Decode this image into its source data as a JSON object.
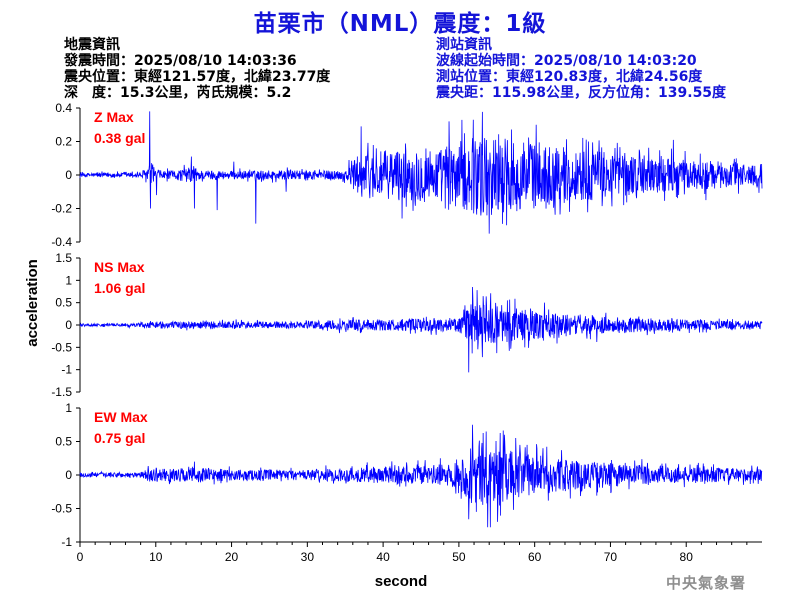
{
  "header": {
    "title": "苗栗市（NML）震度：1級"
  },
  "quake_info": {
    "heading": "地震資訊",
    "origin_time": "發震時間：2025/08/10 14:03:36",
    "epicenter": "震央位置：東經121.57度，北緯23.77度",
    "depth_magnitude": "深　度：15.3公里，芮氏規模：5.2"
  },
  "station_info": {
    "heading": "測站資訊",
    "start_time": "波線起始時間：2025/08/10 14:03:20",
    "location": "測站位置：東經120.83度，北緯24.56度",
    "distance": "震央距：115.98公里，反方位角：139.55度"
  },
  "footer": {
    "credit": "中央氣象署"
  },
  "chart_data": {
    "type": "line",
    "xlabel": "second",
    "ylabel": "acceleration",
    "xlim": [
      0,
      90
    ],
    "x_ticks": [
      0,
      10,
      20,
      30,
      40,
      50,
      60,
      70,
      80
    ],
    "line_color": "#0000ff",
    "label_color": "#ff0000",
    "grid": false,
    "panels": [
      {
        "name": "Z",
        "label": "Z Max",
        "max_value": "0.38 gal",
        "ylim": [
          -0.4,
          0.4
        ],
        "ticks": [
          -0.4,
          -0.2,
          0,
          0.2,
          0.4
        ],
        "tick_labels": [
          "-0.4",
          "-0.2",
          "0",
          "0.2",
          "0.4"
        ],
        "envelope": [
          [
            0,
            0.012
          ],
          [
            8,
            0.015
          ],
          [
            9,
            0.06
          ],
          [
            10,
            0.03
          ],
          [
            12,
            0.025
          ],
          [
            15,
            0.05
          ],
          [
            16,
            0.03
          ],
          [
            20,
            0.025
          ],
          [
            27,
            0.03
          ],
          [
            30,
            0.025
          ],
          [
            35,
            0.03
          ],
          [
            36,
            0.1
          ],
          [
            38,
            0.14
          ],
          [
            45,
            0.16
          ],
          [
            48,
            0.16
          ],
          [
            50,
            0.2
          ],
          [
            53,
            0.25
          ],
          [
            57,
            0.22
          ],
          [
            60,
            0.2
          ],
          [
            65,
            0.16
          ],
          [
            70,
            0.14
          ],
          [
            80,
            0.09
          ],
          [
            90,
            0.07
          ]
        ],
        "spikes": [
          [
            9.2,
            0.38
          ],
          [
            9.3,
            -0.2
          ],
          [
            10.1,
            -0.12
          ],
          [
            14.7,
            0.11
          ],
          [
            15.1,
            -0.2
          ],
          [
            18.1,
            -0.21
          ],
          [
            20.3,
            0.08
          ],
          [
            23.2,
            -0.29
          ],
          [
            27.2,
            -0.1
          ],
          [
            37.1,
            0.29
          ],
          [
            42.5,
            -0.26
          ],
          [
            48.7,
            0.32
          ],
          [
            51.9,
            0.33
          ],
          [
            54.0,
            -0.35
          ],
          [
            56.3,
            -0.3
          ],
          [
            60.2,
            0.3
          ],
          [
            64.6,
            -0.22
          ],
          [
            67.1,
            0.2
          ],
          [
            78.3,
            0.21
          ],
          [
            82.6,
            -0.15
          ]
        ]
      },
      {
        "name": "NS",
        "label": "NS Max",
        "max_value": "1.06 gal",
        "ylim": [
          -1.5,
          1.5
        ],
        "ticks": [
          -1.5,
          -1,
          -0.5,
          0,
          0.5,
          1,
          1.5
        ],
        "tick_labels": [
          "-1.5",
          "-1",
          "-0.5",
          "0",
          "0.5",
          "1",
          "1.5"
        ],
        "envelope": [
          [
            0,
            0.03
          ],
          [
            8,
            0.04
          ],
          [
            10,
            0.08
          ],
          [
            20,
            0.08
          ],
          [
            30,
            0.08
          ],
          [
            35,
            0.12
          ],
          [
            45,
            0.14
          ],
          [
            50,
            0.15
          ],
          [
            51.5,
            0.45
          ],
          [
            53,
            0.5
          ],
          [
            56,
            0.4
          ],
          [
            60,
            0.32
          ],
          [
            65,
            0.22
          ],
          [
            70,
            0.18
          ],
          [
            80,
            0.12
          ],
          [
            90,
            0.08
          ]
        ],
        "spikes": [
          [
            51.3,
            -1.06
          ],
          [
            51.8,
            0.85
          ],
          [
            52.4,
            0.78
          ],
          [
            53.1,
            -0.72
          ],
          [
            54.2,
            0.71
          ],
          [
            55.0,
            -0.63
          ],
          [
            56.4,
            0.55
          ],
          [
            58.7,
            -0.5
          ],
          [
            61.3,
            0.5
          ],
          [
            68.2,
            -0.38
          ],
          [
            36.0,
            0.15
          ]
        ]
      },
      {
        "name": "EW",
        "label": "EW Max",
        "max_value": "0.75 gal",
        "ylim": [
          -1,
          1
        ],
        "ticks": [
          -1,
          -0.5,
          0,
          0.5,
          1
        ],
        "tick_labels": [
          "-1",
          "-0.5",
          "0",
          "0.5",
          "1"
        ],
        "envelope": [
          [
            0,
            0.03
          ],
          [
            8,
            0.04
          ],
          [
            9,
            0.1
          ],
          [
            12,
            0.09
          ],
          [
            15,
            0.12
          ],
          [
            20,
            0.08
          ],
          [
            30,
            0.08
          ],
          [
            35,
            0.1
          ],
          [
            40,
            0.13
          ],
          [
            45,
            0.14
          ],
          [
            50,
            0.18
          ],
          [
            51.5,
            0.45
          ],
          [
            54,
            0.5
          ],
          [
            57,
            0.38
          ],
          [
            60,
            0.3
          ],
          [
            65,
            0.22
          ],
          [
            70,
            0.18
          ],
          [
            80,
            0.12
          ],
          [
            90,
            0.09
          ]
        ],
        "spikes": [
          [
            51.8,
            0.75
          ],
          [
            52.3,
            -0.55
          ],
          [
            53.6,
            0.65
          ],
          [
            55.1,
            -0.7
          ],
          [
            56.0,
            0.6
          ],
          [
            57.2,
            -0.52
          ],
          [
            59.0,
            0.45
          ],
          [
            61.1,
            0.4
          ],
          [
            64.7,
            -0.35
          ],
          [
            15.1,
            0.2
          ],
          [
            37.8,
            0.15
          ]
        ]
      }
    ]
  }
}
